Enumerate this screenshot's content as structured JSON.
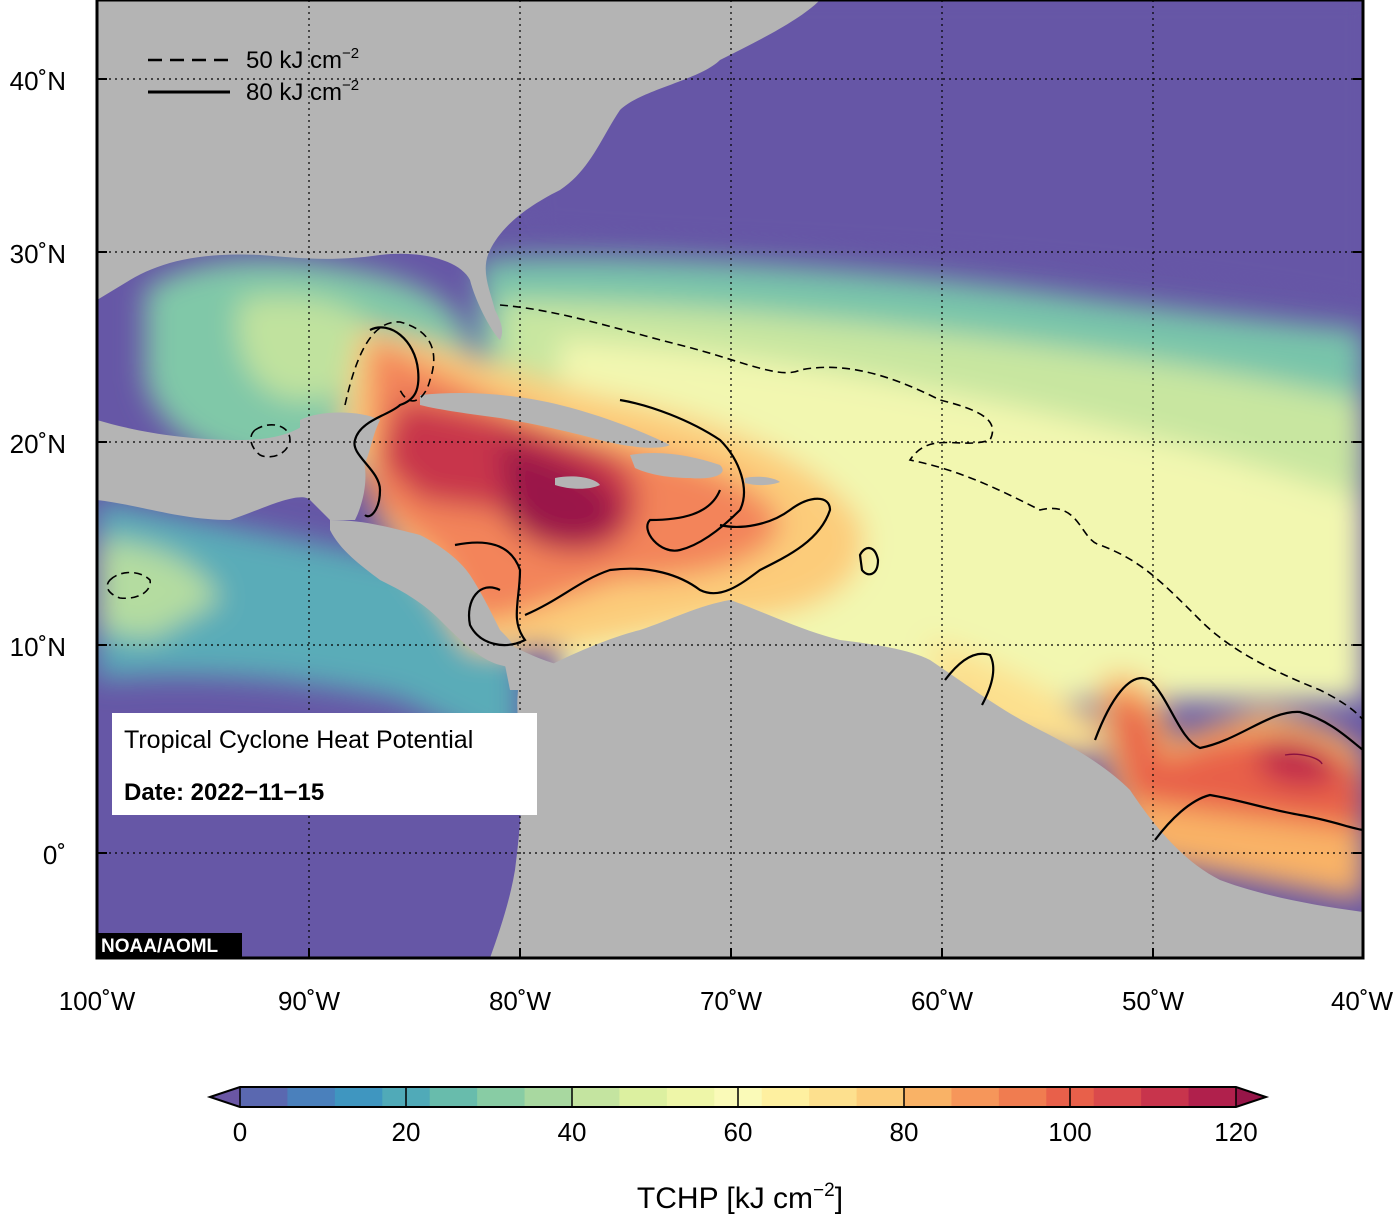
{
  "map": {
    "lon_labels": [
      "100˚W",
      "90˚W",
      "80˚W",
      "70˚W",
      "60˚W",
      "50˚W",
      "40˚W"
    ],
    "lat_labels": [
      "40˚N",
      "30˚N",
      "20˚N",
      "10˚N",
      "0˚"
    ],
    "colors": {
      "ocean_low": "#6858a8",
      "land": "#b4b4b4",
      "frame": "#000000"
    }
  },
  "legend": {
    "dashed_label": "50 kJ cm",
    "solid_label": "80 kJ cm",
    "exponent": "−2"
  },
  "info_box": {
    "title": "Tropical Cyclone Heat Potential",
    "date": "Date: 2022−11−15"
  },
  "credit": "NOAA/AOML",
  "colorbar": {
    "label_main": "TCHP [kJ cm",
    "label_exp": "−2",
    "label_close": "]",
    "ticks": [
      "0",
      "20",
      "40",
      "60",
      "80",
      "100",
      "120"
    ],
    "colors": [
      "#6a56a4",
      "#5a68b0",
      "#4a80bc",
      "#3f96c0",
      "#50aab8",
      "#68bcac",
      "#88cca4",
      "#a8d8a0",
      "#c4e4a0",
      "#dcf0a0",
      "#eef6a8",
      "#fafab8",
      "#fef0a0",
      "#fde08e",
      "#fccc7a",
      "#f9b266",
      "#f6965a",
      "#f07c50",
      "#e8604a",
      "#da4a4c",
      "#c8344c",
      "#b0204c",
      "#961548"
    ]
  }
}
